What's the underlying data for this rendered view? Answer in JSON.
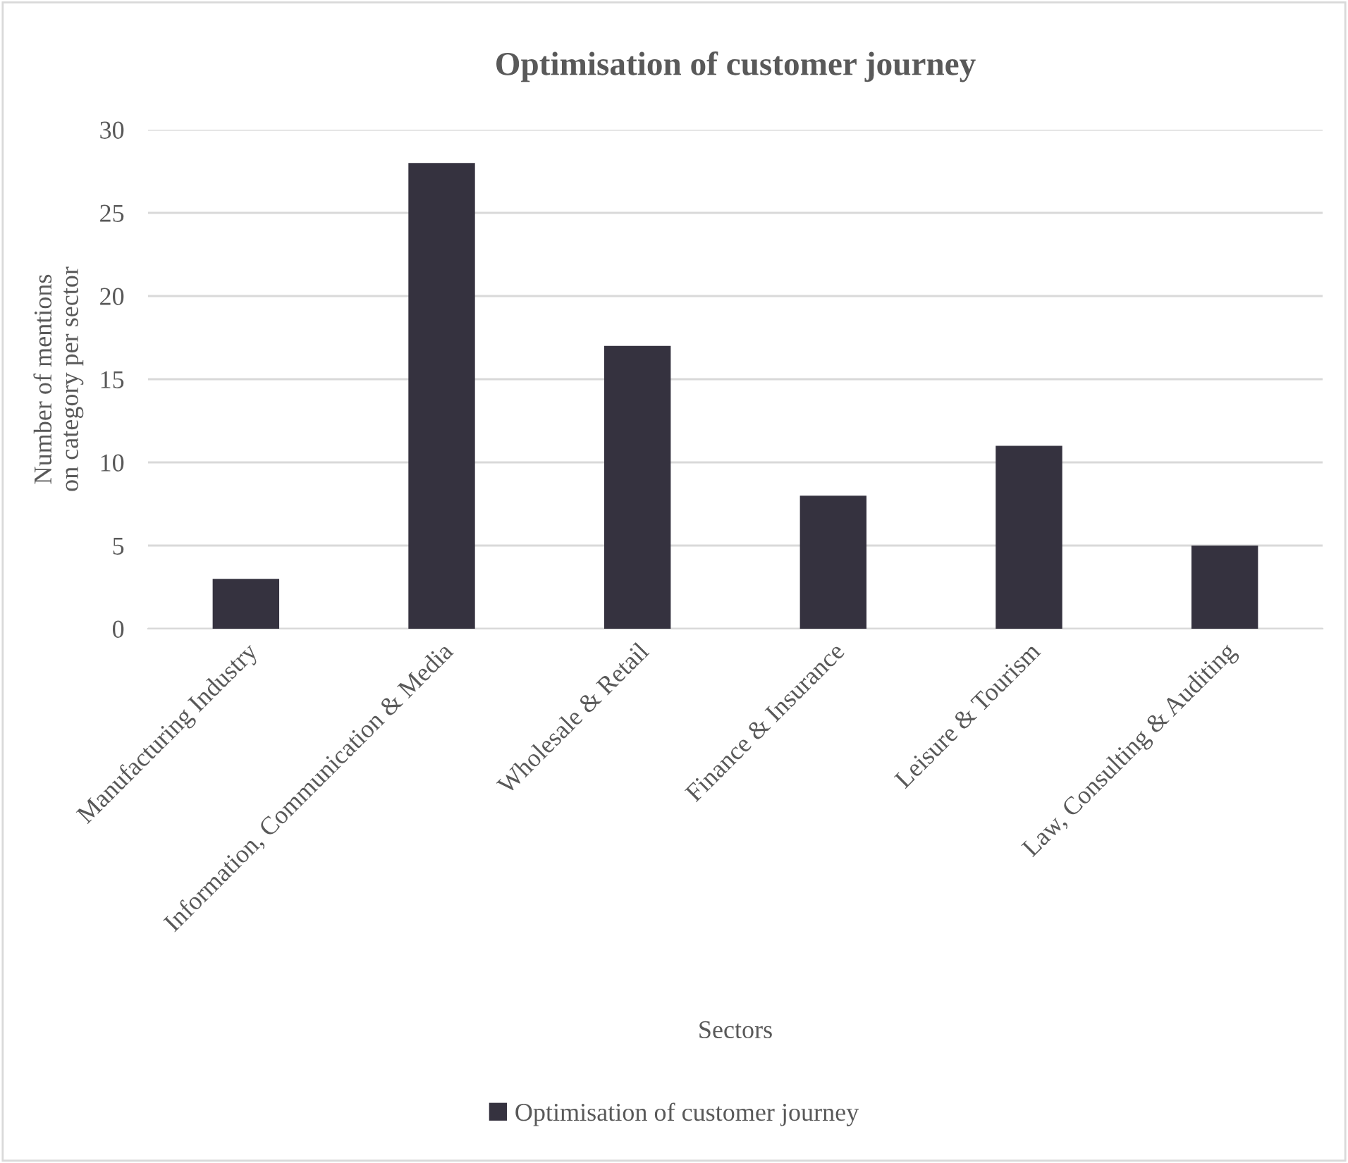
{
  "chart_data": {
    "type": "bar",
    "title": "Optimisation of customer journey",
    "xlabel": "Sectors",
    "ylabel": "Number of mentions\non category per sector",
    "categories": [
      "Manufacturing Industry",
      "Information, Communication & Media",
      "Wholesale & Retail",
      "Finance & Insurance",
      "Leisure & Tourism",
      "Law, Consulting & Auditing"
    ],
    "series": [
      {
        "name": "Optimisation of customer journey",
        "color": "#35323f",
        "values": [
          3,
          28,
          17,
          8,
          11,
          5
        ]
      }
    ],
    "ylim": [
      0,
      30
    ],
    "yticks": [
      0,
      5,
      10,
      15,
      20,
      25,
      30
    ],
    "grid": "y",
    "legend": "bottom"
  }
}
